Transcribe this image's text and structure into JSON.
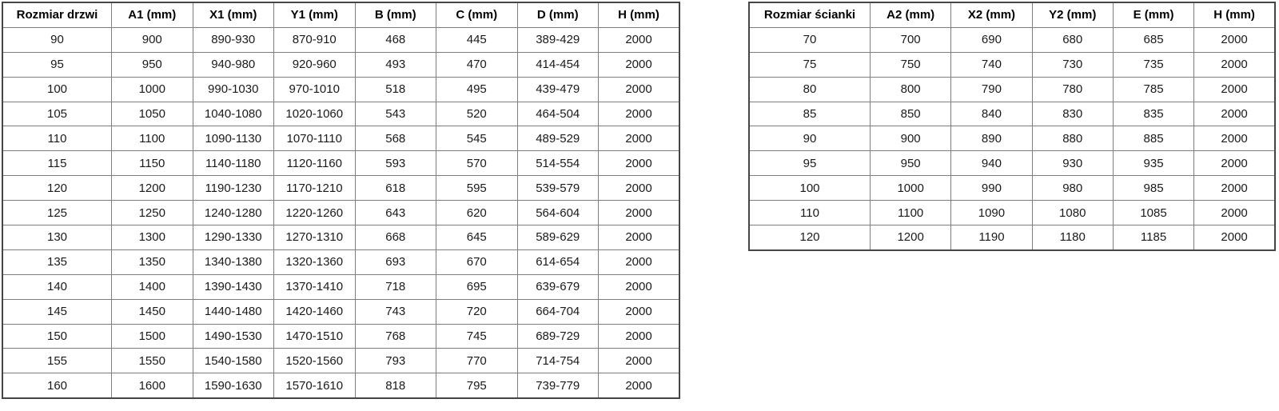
{
  "colors": {
    "background": "#ffffff",
    "border_inner": "#7f7f7f",
    "border_outer": "#454545",
    "text": "#1a1a1a",
    "header_text": "#000000"
  },
  "door_table": {
    "title": "Rozmiar drzwi",
    "headers": [
      "Rozmiar drzwi",
      "A1 (mm)",
      "X1 (mm)",
      "Y1 (mm)",
      "B (mm)",
      "C (mm)",
      "D (mm)",
      "H (mm)"
    ],
    "rows": [
      [
        "90",
        "900",
        "890-930",
        "870-910",
        "468",
        "445",
        "389-429",
        "2000"
      ],
      [
        "95",
        "950",
        "940-980",
        "920-960",
        "493",
        "470",
        "414-454",
        "2000"
      ],
      [
        "100",
        "1000",
        "990-1030",
        "970-1010",
        "518",
        "495",
        "439-479",
        "2000"
      ],
      [
        "105",
        "1050",
        "1040-1080",
        "1020-1060",
        "543",
        "520",
        "464-504",
        "2000"
      ],
      [
        "110",
        "1100",
        "1090-1130",
        "1070-1110",
        "568",
        "545",
        "489-529",
        "2000"
      ],
      [
        "115",
        "1150",
        "1140-1180",
        "1120-1160",
        "593",
        "570",
        "514-554",
        "2000"
      ],
      [
        "120",
        "1200",
        "1190-1230",
        "1170-1210",
        "618",
        "595",
        "539-579",
        "2000"
      ],
      [
        "125",
        "1250",
        "1240-1280",
        "1220-1260",
        "643",
        "620",
        "564-604",
        "2000"
      ],
      [
        "130",
        "1300",
        "1290-1330",
        "1270-1310",
        "668",
        "645",
        "589-629",
        "2000"
      ],
      [
        "135",
        "1350",
        "1340-1380",
        "1320-1360",
        "693",
        "670",
        "614-654",
        "2000"
      ],
      [
        "140",
        "1400",
        "1390-1430",
        "1370-1410",
        "718",
        "695",
        "639-679",
        "2000"
      ],
      [
        "145",
        "1450",
        "1440-1480",
        "1420-1460",
        "743",
        "720",
        "664-704",
        "2000"
      ],
      [
        "150",
        "1500",
        "1490-1530",
        "1470-1510",
        "768",
        "745",
        "689-729",
        "2000"
      ],
      [
        "155",
        "1550",
        "1540-1580",
        "1520-1560",
        "793",
        "770",
        "714-754",
        "2000"
      ],
      [
        "160",
        "1600",
        "1590-1630",
        "1570-1610",
        "818",
        "795",
        "739-779",
        "2000"
      ]
    ]
  },
  "wall_table": {
    "title": "Rozmiar ścianki",
    "headers": [
      "Rozmiar ścianki",
      "A2 (mm)",
      "X2 (mm)",
      "Y2 (mm)",
      "E (mm)",
      "H (mm)"
    ],
    "rows": [
      [
        "70",
        "700",
        "690",
        "680",
        "685",
        "2000"
      ],
      [
        "75",
        "750",
        "740",
        "730",
        "735",
        "2000"
      ],
      [
        "80",
        "800",
        "790",
        "780",
        "785",
        "2000"
      ],
      [
        "85",
        "850",
        "840",
        "830",
        "835",
        "2000"
      ],
      [
        "90",
        "900",
        "890",
        "880",
        "885",
        "2000"
      ],
      [
        "95",
        "950",
        "940",
        "930",
        "935",
        "2000"
      ],
      [
        "100",
        "1000",
        "990",
        "980",
        "985",
        "2000"
      ],
      [
        "110",
        "1100",
        "1090",
        "1080",
        "1085",
        "2000"
      ],
      [
        "120",
        "1200",
        "1190",
        "1180",
        "1185",
        "2000"
      ]
    ]
  }
}
